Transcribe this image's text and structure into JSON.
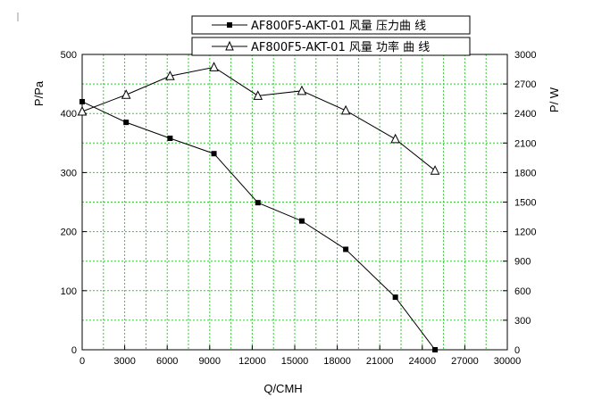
{
  "chart_data": {
    "type": "line",
    "xlabel": "Q/CMH",
    "ylabel_left": "P/Pa",
    "ylabel_right": "P/ W",
    "xlim": [
      0,
      30000
    ],
    "ylim_left": [
      0,
      500
    ],
    "ylim_right": [
      0,
      3000
    ],
    "x_ticks": [
      0,
      3000,
      6000,
      9000,
      12000,
      15000,
      18000,
      21000,
      24000,
      27000,
      30000
    ],
    "x_tick_labels": [
      "0",
      "3000",
      "6000",
      "9000",
      "12000",
      "15000",
      "18000",
      "21000",
      "24000",
      "27000",
      "30000"
    ],
    "y_left_ticks": [
      0,
      100,
      200,
      300,
      400,
      500
    ],
    "y_left_tick_labels": [
      "0",
      "100",
      "200",
      "300",
      "400",
      "500"
    ],
    "y_right_ticks": [
      0,
      300,
      600,
      900,
      1200,
      1500,
      1800,
      2100,
      2400,
      2700,
      3000
    ],
    "y_right_tick_labels": [
      "0",
      "300",
      "600",
      "900",
      "1200",
      "1500",
      "1800",
      "2100",
      "2400",
      "2700",
      "3000"
    ],
    "grid": "dotted green, minor x every 1500 and y every 50 (left axis)",
    "legend_placement": "top, outside plot",
    "series": [
      {
        "name": "AF800F5-AKT-01 风量 压力曲 线",
        "axis": "left",
        "marker": "filled-square",
        "x": [
          0,
          3100,
          6200,
          9300,
          12400,
          15500,
          18600,
          22100,
          24900
        ],
        "y": [
          420,
          385,
          358,
          332,
          249,
          218,
          170,
          89,
          0
        ]
      },
      {
        "name": "AF800F5-AKT-01 风量 功率 曲 线",
        "axis": "right",
        "marker": "open-triangle",
        "x": [
          0,
          3100,
          6200,
          9300,
          12400,
          15500,
          18600,
          22100,
          24900
        ],
        "y": [
          2420,
          2590,
          2780,
          2870,
          2580,
          2630,
          2430,
          2140,
          1820
        ]
      }
    ]
  },
  "colors": {
    "grid": "#33cc33",
    "line": "#000000"
  }
}
